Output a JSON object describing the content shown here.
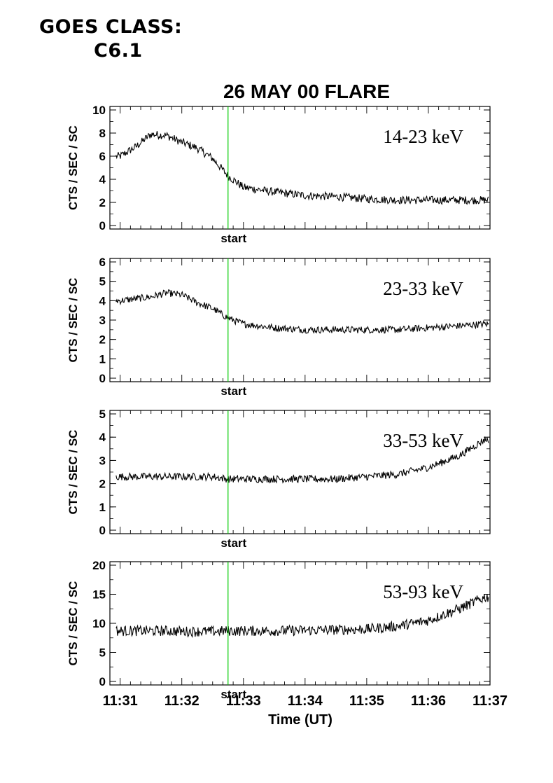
{
  "header": {
    "goes_label": "GOES CLASS:",
    "goes_value": "C6.1"
  },
  "chart_title": "26 MAY 00 FLARE",
  "colors": {
    "trace": "#000000",
    "start_marker": "#00cc00",
    "axes": "#000000"
  },
  "chart_data": [
    {
      "type": "line",
      "band_label": "14-23 keV",
      "ylabel": "CTS / SEC / SC",
      "ylim": [
        0,
        10
      ],
      "yticks": [
        "0",
        "2",
        "4",
        "6",
        "8",
        "10"
      ],
      "marker_label": "start",
      "series": [
        {
          "x": [
            "11:31",
            "11:31:15",
            "11:31:30",
            "11:31:45",
            "11:32",
            "11:32:15",
            "11:32:30",
            "11:32:45",
            "11:33",
            "11:33:30",
            "11:34",
            "11:34:30",
            "11:35",
            "11:35:30",
            "11:36",
            "11:36:30",
            "11:36:55"
          ],
          "values": [
            6.0,
            6.8,
            7.9,
            7.8,
            7.2,
            6.7,
            5.8,
            4.3,
            3.3,
            2.9,
            2.6,
            2.5,
            2.3,
            2.2,
            2.2,
            2.2,
            2.2
          ]
        }
      ]
    },
    {
      "type": "line",
      "band_label": "23-33 keV",
      "ylabel": "CTS / SEC / SC",
      "ylim": [
        0,
        6
      ],
      "yticks": [
        "0",
        "1",
        "2",
        "3",
        "4",
        "5",
        "6"
      ],
      "marker_label": "start",
      "series": [
        {
          "x": [
            "11:31",
            "11:31:15",
            "11:31:30",
            "11:31:45",
            "11:32",
            "11:32:15",
            "11:32:30",
            "11:32:45",
            "11:33",
            "11:33:30",
            "11:34",
            "11:34:30",
            "11:35",
            "11:35:30",
            "11:36",
            "11:36:30",
            "11:36:55"
          ],
          "values": [
            4.0,
            4.1,
            4.2,
            4.4,
            4.3,
            3.9,
            3.6,
            3.1,
            2.8,
            2.6,
            2.5,
            2.5,
            2.5,
            2.5,
            2.6,
            2.7,
            2.8
          ]
        }
      ]
    },
    {
      "type": "line",
      "band_label": "33-53 keV",
      "ylabel": "CTS / SEC / SC",
      "ylim": [
        0,
        5
      ],
      "yticks": [
        "0",
        "1",
        "2",
        "3",
        "4",
        "5"
      ],
      "marker_label": "start",
      "series": [
        {
          "x": [
            "11:31",
            "11:31:15",
            "11:31:30",
            "11:31:45",
            "11:32",
            "11:32:15",
            "11:32:30",
            "11:32:45",
            "11:33",
            "11:33:30",
            "11:34",
            "11:34:30",
            "11:35",
            "11:35:30",
            "11:36",
            "11:36:30",
            "11:36:55"
          ],
          "values": [
            2.3,
            2.3,
            2.3,
            2.3,
            2.3,
            2.3,
            2.3,
            2.2,
            2.2,
            2.2,
            2.2,
            2.2,
            2.3,
            2.4,
            2.7,
            3.2,
            3.9
          ]
        }
      ]
    },
    {
      "type": "line",
      "band_label": "53-93 keV",
      "ylabel": "CTS / SEC / SC",
      "ylim": [
        0,
        20
      ],
      "yticks": [
        "0",
        "5",
        "10",
        "15",
        "20"
      ],
      "marker_label": "start",
      "series": [
        {
          "x": [
            "11:31",
            "11:31:15",
            "11:31:30",
            "11:31:45",
            "11:32",
            "11:32:15",
            "11:32:30",
            "11:32:45",
            "11:33",
            "11:33:30",
            "11:34",
            "11:34:30",
            "11:35",
            "11:35:30",
            "11:36",
            "11:36:30",
            "11:36:55"
          ],
          "values": [
            8.7,
            8.7,
            8.7,
            8.7,
            8.6,
            8.6,
            8.6,
            8.7,
            8.7,
            8.7,
            8.8,
            8.9,
            9.0,
            9.5,
            10.5,
            12.5,
            14.5
          ]
        }
      ]
    }
  ],
  "xaxis": {
    "xlabel": "Time (UT)",
    "ticks": [
      "11:31",
      "11:32",
      "11:33",
      "11:34",
      "11:35",
      "11:36",
      "11:37"
    ],
    "xlim": [
      "11:30:50",
      "11:37:00"
    ],
    "start_time": "11:32:45"
  }
}
